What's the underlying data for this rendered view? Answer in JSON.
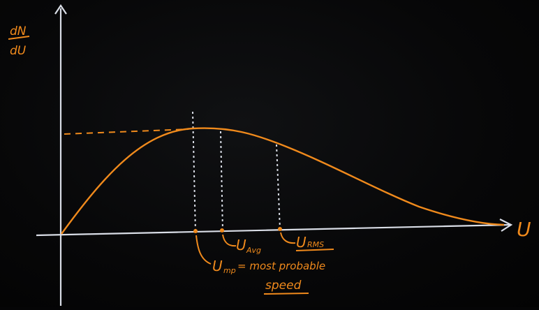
{
  "colors": {
    "background": "#060607",
    "chalk_white": "#d9dde6",
    "orange": "#f08a1c"
  },
  "labels": {
    "y_axis_numerator": "dN",
    "y_axis_denominator": "dU",
    "x_axis": "U",
    "u_avg": "U",
    "u_avg_sub": "Avg",
    "u_rms": "U",
    "u_rms_sub": "RMS",
    "u_mp": "U",
    "u_mp_sub": "mp",
    "u_mp_text": "= most probable",
    "speed": "speed"
  },
  "curve": {
    "type": "Maxwell speed distribution",
    "markers": [
      "U_mp",
      "U_Avg",
      "U_RMS"
    ]
  }
}
